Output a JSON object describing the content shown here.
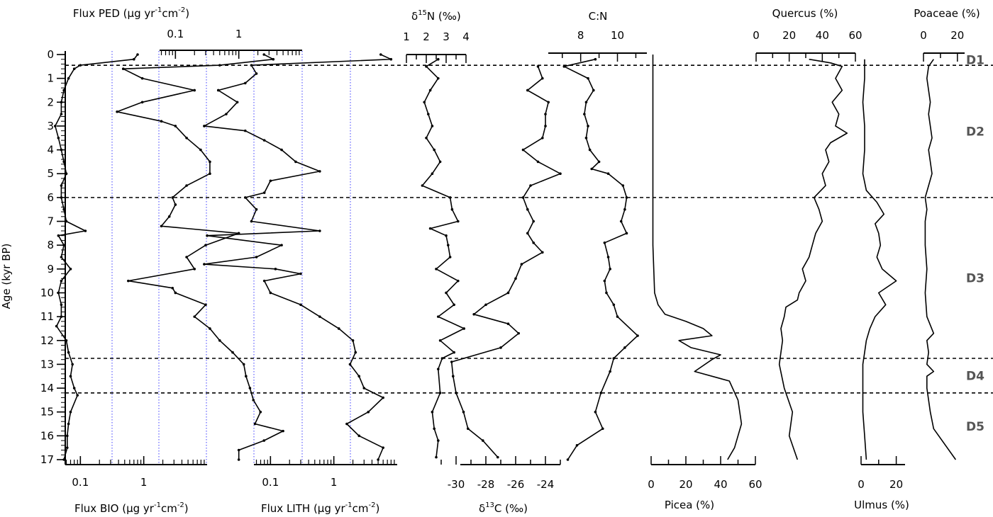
{
  "chart_data": {
    "type": "line",
    "title": "",
    "y_axis": {
      "label": "Age (kyr BP)",
      "range": [
        0,
        17
      ],
      "ticks": [
        0,
        1,
        2,
        3,
        4,
        5,
        6,
        7,
        8,
        9,
        10,
        11,
        12,
        13,
        14,
        15,
        16,
        17
      ],
      "inverted": true
    },
    "zones": [
      {
        "label": "D1",
        "from": 0,
        "to": 0.45
      },
      {
        "label": "D2",
        "from": 0.45,
        "to": 6.0
      },
      {
        "label": "D3",
        "from": 6.0,
        "to": 12.75
      },
      {
        "label": "D4",
        "from": 12.75,
        "to": 14.2
      },
      {
        "label": "D5",
        "from": 14.2,
        "to": 17
      }
    ],
    "zone_boundaries": [
      0.45,
      6.0,
      12.75,
      14.2
    ],
    "panels": [
      {
        "id": "flux_bio",
        "name": "Flux BIO",
        "unit": "µg yr-1 cm-2",
        "axis_position": "bottom",
        "scale": "log",
        "tick_labels": [
          "0.1",
          "1"
        ],
        "xlim": [
          0.01,
          10
        ],
        "ages": [
          0,
          0.2,
          0.45,
          0.6,
          1,
          1.5,
          2,
          2.5,
          3,
          3.5,
          4,
          4.5,
          5,
          5.5,
          6,
          6.5,
          7,
          7.4,
          7.6,
          8,
          8.5,
          9,
          9.5,
          10,
          10.5,
          11,
          11.4,
          12,
          12.5,
          13,
          13.5,
          14,
          14.3,
          15,
          15.5,
          16,
          16.5,
          17
        ],
        "values": [
          0.8,
          0.7,
          0.1,
          0.08,
          0.065,
          0.055,
          0.05,
          0.05,
          0.04,
          0.045,
          0.05,
          0.055,
          0.06,
          0.05,
          0.05,
          0.055,
          0.06,
          0.12,
          0.045,
          0.055,
          0.05,
          0.07,
          0.05,
          0.045,
          0.05,
          0.05,
          0.042,
          0.06,
          0.065,
          0.075,
          0.07,
          0.08,
          0.09,
          0.07,
          0.065,
          0.062,
          0.062,
          0.055
        ]
      },
      {
        "id": "flux_ped",
        "name": "Flux PED",
        "unit": "µg yr-1 cm-2",
        "axis_position": "top",
        "scale": "log",
        "tick_labels": [
          "0.1",
          "1"
        ],
        "xlim": [
          0.01,
          10
        ],
        "ages": [
          0,
          0.2,
          0.45,
          0.6,
          1,
          1.5,
          2,
          2.4,
          2.8,
          3,
          3.5,
          4,
          4.5,
          5,
          5.5,
          6,
          6.3,
          6.8,
          7.2,
          7.5,
          8,
          8.5,
          9,
          9.5,
          9.8,
          10,
          10.5,
          11,
          11.5,
          12,
          12.5,
          13,
          13.5,
          14,
          14.5,
          15,
          15.5,
          15.8,
          16.2,
          16.6,
          17
        ],
        "values": [
          2.5,
          3.5,
          0.5,
          0.015,
          0.03,
          0.2,
          0.03,
          0.012,
          0.06,
          0.1,
          0.15,
          0.25,
          0.35,
          0.35,
          0.15,
          0.09,
          0.1,
          0.08,
          0.06,
          1.0,
          0.3,
          0.15,
          0.2,
          0.018,
          0.09,
          0.1,
          0.3,
          0.2,
          0.35,
          0.5,
          0.8,
          1.2,
          1.3,
          1.5,
          1.7,
          2.2,
          1.8,
          5.0,
          2.5,
          1.0,
          1.0
        ]
      },
      {
        "id": "flux_lith",
        "name": "Flux LITH",
        "unit": "µg yr-1 cm-2",
        "axis_position": "bottom",
        "scale": "log",
        "tick_labels": [
          "0.1",
          "1"
        ],
        "xlim": [
          0.01,
          10
        ],
        "ages": [
          0,
          0.2,
          0.45,
          0.8,
          1.2,
          1.5,
          2,
          2.5,
          3,
          3.2,
          3.6,
          4,
          4.5,
          4.9,
          5.3,
          5.8,
          6,
          6.5,
          7,
          7.4,
          7.6,
          8,
          8.5,
          8.8,
          9,
          9.2,
          9.5,
          10,
          10.5,
          11,
          11.5,
          12,
          12.5,
          13,
          13.5,
          14,
          14.4,
          15,
          15.5,
          16,
          16.5,
          17
        ],
        "values": [
          5.5,
          8,
          0.05,
          0.06,
          0.04,
          0.015,
          0.03,
          0.02,
          0.009,
          0.04,
          0.08,
          0.15,
          0.25,
          0.6,
          0.1,
          0.08,
          0.04,
          0.06,
          0.05,
          0.6,
          0.01,
          0.15,
          0.06,
          0.009,
          0.12,
          0.3,
          0.08,
          0.1,
          0.3,
          0.6,
          1.2,
          2.0,
          2.2,
          1.8,
          2.5,
          3.0,
          6.0,
          3.5,
          1.6,
          2.5,
          6.0,
          5.0
        ]
      },
      {
        "id": "d15n",
        "name": "δ15N",
        "unit": "‰",
        "axis_position": "top",
        "scale": "linear",
        "tick_labels": [
          "1",
          "2",
          "3",
          "4"
        ],
        "xlim": [
          1,
          4
        ],
        "ages": [
          0.2,
          0.5,
          1,
          1.5,
          2,
          2.5,
          3,
          3.5,
          4,
          4.5,
          5,
          5.5,
          6,
          6.5,
          7,
          7.3,
          7.6,
          8,
          8.5,
          9,
          9.5,
          10,
          10.5,
          11,
          11.5,
          12,
          12.5,
          12.75,
          13.2,
          14.2,
          15,
          15.7,
          16.2,
          16.9
        ],
        "values": [
          2.6,
          2.0,
          2.6,
          2.2,
          1.9,
          2.1,
          2.3,
          2.0,
          2.4,
          2.7,
          2.3,
          1.8,
          3.2,
          3.3,
          3.6,
          2.2,
          3.0,
          3.1,
          3.2,
          2.5,
          3.6,
          3.0,
          3.4,
          2.6,
          3.9,
          2.7,
          3.4,
          2.8,
          2.6,
          2.7,
          2.3,
          2.4,
          2.6,
          2.5
        ]
      },
      {
        "id": "d13c",
        "name": "δ13C",
        "unit": "‰",
        "axis_position": "bottom",
        "scale": "linear",
        "tick_labels": [
          "-30",
          "-28",
          "-26",
          "-24"
        ],
        "xlim": [
          -31,
          -23
        ],
        "ages": [
          0.5,
          1,
          1.5,
          2,
          2.5,
          3,
          3.5,
          4,
          4.5,
          5,
          5.5,
          6,
          6.5,
          7,
          7.5,
          7.9,
          8.3,
          8.8,
          9.4,
          10,
          10.5,
          10.9,
          11.3,
          11.7,
          12.3,
          12.9,
          13.5,
          14.2,
          15,
          15.7,
          16.2,
          16.9
        ],
        "values": [
          -24.5,
          -24.2,
          -25.2,
          -23.8,
          -24,
          -24,
          -24.2,
          -25.5,
          -24.5,
          -23,
          -25,
          -25.5,
          -25.2,
          -24.8,
          -25.2,
          -24.8,
          -24.2,
          -25.6,
          -26,
          -26.5,
          -28,
          -28.8,
          -26.5,
          -25.8,
          -27,
          -30.3,
          -30.2,
          -30,
          -29.5,
          -29.2,
          -28.2,
          -27.2
        ]
      },
      {
        "id": "cn",
        "name": "C:N",
        "unit": "",
        "axis_position": "top",
        "scale": "linear",
        "tick_labels": [
          "8",
          "10"
        ],
        "xlim": [
          6.2,
          11.6
        ],
        "ages": [
          0.2,
          0.5,
          1,
          1.5,
          2,
          2.5,
          3,
          3.5,
          4,
          4.5,
          4.8,
          5,
          5.5,
          6,
          6.5,
          7,
          7.5,
          7.9,
          8.5,
          9,
          9.5,
          10,
          10.5,
          11,
          11.8,
          12.3,
          12.75,
          13.3,
          14.2,
          15,
          15.7,
          16.4,
          17
        ],
        "values": [
          8.8,
          7.1,
          8.4,
          8.7,
          8.3,
          8.2,
          8.4,
          8.3,
          8.5,
          9.0,
          8.6,
          9.5,
          10.3,
          10.5,
          10.4,
          10.2,
          10.5,
          9.3,
          9.5,
          9.6,
          9.3,
          9.4,
          9.8,
          10.0,
          11.1,
          10.4,
          9.8,
          9.6,
          9.1,
          8.8,
          9.2,
          7.8,
          7.3
        ]
      },
      {
        "id": "picea",
        "name": "Picea",
        "unit": "%",
        "axis_position": "bottom",
        "scale": "linear",
        "tick_labels": [
          "0",
          "20",
          "40",
          "60"
        ],
        "xlim": [
          0,
          60
        ],
        "ages": [
          0,
          2,
          4,
          6,
          8,
          10,
          10.5,
          10.9,
          11.2,
          11.5,
          11.8,
          12.0,
          12.3,
          12.6,
          12.8,
          13.3,
          13.7,
          14.5,
          15.5,
          16.5,
          17
        ],
        "values": [
          1,
          1,
          1,
          1,
          1,
          2,
          4,
          8,
          20,
          30,
          35,
          16,
          23,
          40,
          35,
          25,
          45,
          50,
          52,
          48,
          44
        ]
      },
      {
        "id": "quercus",
        "name": "Quercus",
        "unit": "%",
        "axis_position": "top",
        "scale": "linear",
        "tick_labels": [
          "0",
          "20",
          "40",
          "60"
        ],
        "xlim": [
          0,
          60
        ],
        "ages": [
          0.2,
          0.35,
          0.5,
          1,
          1.5,
          2,
          2.5,
          3,
          3.3,
          3.7,
          4,
          4.5,
          5,
          5.5,
          6,
          6.5,
          7,
          7.5,
          8,
          8.5,
          9,
          9.5,
          10,
          10.3,
          10.6,
          11,
          11.5,
          12,
          12.5,
          13,
          14,
          15,
          16,
          17
        ],
        "values": [
          32,
          45,
          52,
          48,
          52,
          46,
          50,
          48,
          55,
          45,
          42,
          44,
          40,
          42,
          35,
          38,
          40,
          36,
          34,
          32,
          28,
          30,
          26,
          25,
          18,
          17,
          15,
          16,
          15,
          14,
          17,
          22,
          20,
          25
        ]
      },
      {
        "id": "ulmus",
        "name": "Ulmus",
        "unit": "%",
        "axis_position": "bottom",
        "scale": "linear",
        "tick_labels": [
          "0",
          "20"
        ],
        "xlim": [
          0,
          25
        ],
        "ages": [
          0.2,
          1,
          2,
          3,
          4,
          5,
          5.7,
          6.2,
          6.7,
          7.1,
          7.5,
          8,
          8.5,
          9,
          9.5,
          10,
          10.5,
          11,
          11.5,
          12,
          12.5,
          13,
          14,
          15,
          16,
          17
        ],
        "values": [
          2,
          2,
          1,
          2,
          2,
          1,
          3,
          9,
          13,
          8,
          10,
          11,
          9,
          12,
          20,
          10,
          14,
          8,
          5,
          3,
          2,
          1,
          1,
          1,
          2,
          3
        ]
      },
      {
        "id": "poaceae",
        "name": "Poaceae",
        "unit": "%",
        "axis_position": "top",
        "scale": "linear",
        "tick_labels": [
          "0",
          "20"
        ],
        "xlim": [
          0,
          23
        ],
        "ages": [
          0.2,
          0.5,
          1,
          1.5,
          2,
          2.5,
          3,
          3.5,
          4,
          4.5,
          5,
          5.5,
          6,
          6.5,
          7,
          8,
          9,
          10,
          11,
          11.7,
          12,
          12.5,
          13,
          13.3,
          13.5,
          14,
          15,
          15.7,
          17
        ],
        "values": [
          6,
          3,
          2,
          3,
          4,
          3,
          4,
          5,
          3,
          4,
          5,
          3,
          1,
          2,
          1,
          1,
          2,
          1,
          2,
          6,
          2,
          3,
          2,
          6,
          2,
          2,
          4,
          6,
          19
        ]
      }
    ]
  },
  "labels": {
    "y_axis_title": "Age (kyr BP)",
    "flux_bio_title": "Flux BIO (µg yr",
    "flux_ped_title": "Flux PED (µg yr",
    "flux_lith_title": "Flux LITH (µg yr",
    "d15n_title": "N (‰)",
    "d13c_title": "C (‰)",
    "cn_title": "C:N",
    "picea_title": "Picea (%)",
    "quercus_title": "Quercus (%)",
    "ulmus_title": "Ulmus (%)",
    "poaceae_title": "Poaceae (%)"
  }
}
